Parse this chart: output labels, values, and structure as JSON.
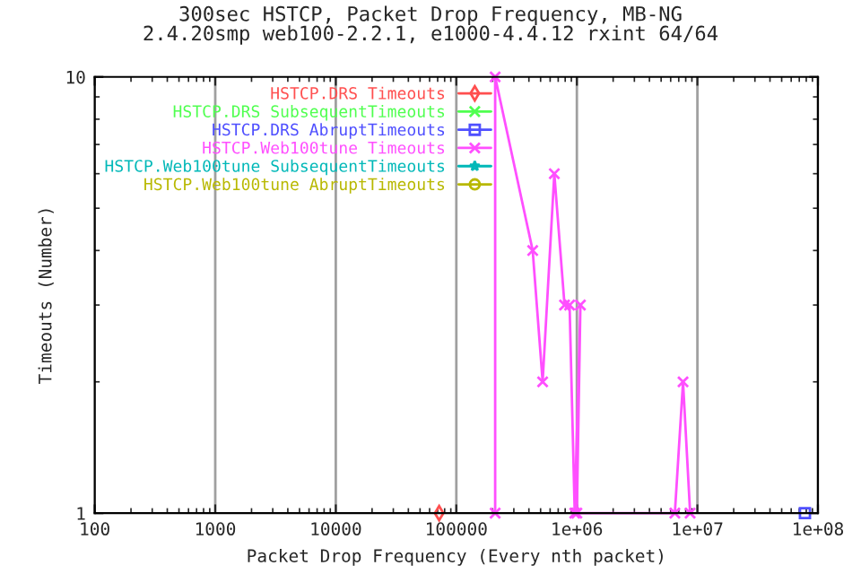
{
  "chart_data": {
    "type": "line",
    "title": "300sec HSTCP, Packet Drop Frequency, MB-NG",
    "subtitle": "2.4.20smp web100-2.2.1, e1000-4.4.12 rxint 64/64",
    "xlabel": "Packet Drop Frequency (Every nth packet)",
    "ylabel": "Timeouts (Number)",
    "log": "xy",
    "xlim": [
      100,
      100000000
    ],
    "ylim": [
      1,
      10
    ],
    "xticks": [
      {
        "value": 100,
        "label": "100"
      },
      {
        "value": 1000,
        "label": "1000"
      },
      {
        "value": 10000,
        "label": "10000"
      },
      {
        "value": 100000,
        "label": "100000"
      },
      {
        "value": 1000000,
        "label": "1e+06"
      },
      {
        "value": 10000000,
        "label": "1e+07"
      },
      {
        "value": 100000000,
        "label": "1e+08"
      }
    ],
    "yticks": [
      1,
      10
    ],
    "grid": "x",
    "legend": "top left",
    "line_style": "solid",
    "series": [
      {
        "name": "HSTCP.DRS Timeouts",
        "color": "#ff4f4f",
        "marker": "diamond",
        "x": [
          72000
        ],
        "values": [
          1
        ]
      },
      {
        "name": "HSTCP.DRS SubsequentTimeouts",
        "color": "#4fff4f",
        "marker": "cross"
      },
      {
        "name": "HSTCP.DRS AbruptTimeouts",
        "color": "#4f4fff",
        "marker": "square",
        "x": [
          78000000
        ],
        "values": [
          1
        ]
      },
      {
        "name": "HSTCP.Web100tune Timeouts",
        "color": "#ff4fff",
        "marker": "cross",
        "x": [
          210000,
          210000,
          430000,
          520000,
          650000,
          790000,
          870000,
          960000,
          1070000,
          1000000,
          6500000,
          7600000,
          8700000
        ],
        "values": [
          1,
          10,
          4,
          2,
          6,
          3,
          3,
          1,
          3,
          1,
          1,
          2,
          1
        ]
      },
      {
        "name": "HSTCP.Web100tune SubsequentTimeouts",
        "color": "#00b8b8",
        "marker": "star"
      },
      {
        "name": "HSTCP.Web100tune AbruptTimeouts",
        "color": "#b8b800",
        "marker": "circle"
      }
    ]
  }
}
